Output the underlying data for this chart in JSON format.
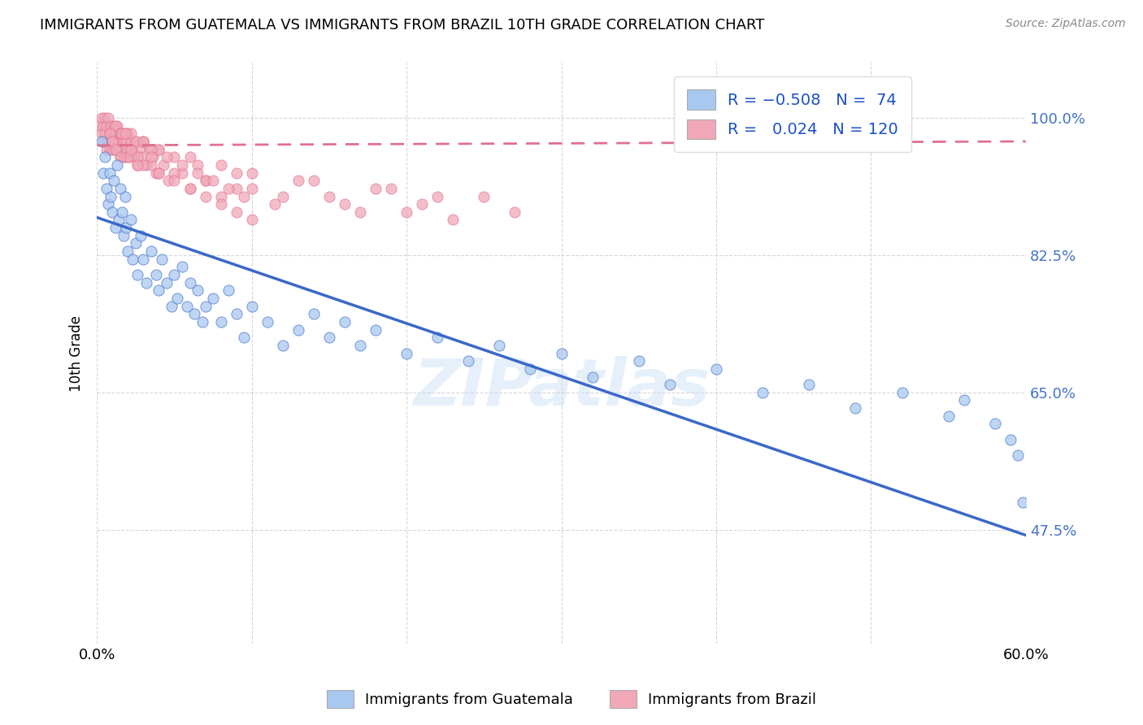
{
  "title": "IMMIGRANTS FROM GUATEMALA VS IMMIGRANTS FROM BRAZIL 10TH GRADE CORRELATION CHART",
  "source": "Source: ZipAtlas.com",
  "ylabel": "10th Grade",
  "ytick_labels": [
    "47.5%",
    "65.0%",
    "82.5%",
    "100.0%"
  ],
  "ytick_values": [
    0.475,
    0.65,
    0.825,
    1.0
  ],
  "xlim": [
    0.0,
    0.6
  ],
  "ylim": [
    0.33,
    1.07
  ],
  "color_guatemala": "#a8c8f0",
  "color_brazil": "#f0a8b8",
  "color_line_guatemala": "#3a68c8",
  "color_line_brazil": "#e07090",
  "watermark": "ZIPatlas",
  "guatemala_line_x0": 0.0,
  "guatemala_line_y0": 0.873,
  "guatemala_line_x1": 0.6,
  "guatemala_line_y1": 0.468,
  "brazil_line_x0": 0.0,
  "brazil_line_y0": 0.965,
  "brazil_line_x1": 0.6,
  "brazil_line_y1": 0.97,
  "guatemala_x": [
    0.003,
    0.004,
    0.005,
    0.006,
    0.007,
    0.008,
    0.009,
    0.01,
    0.011,
    0.012,
    0.013,
    0.014,
    0.015,
    0.016,
    0.017,
    0.018,
    0.019,
    0.02,
    0.022,
    0.023,
    0.025,
    0.026,
    0.028,
    0.03,
    0.032,
    0.035,
    0.038,
    0.04,
    0.042,
    0.045,
    0.048,
    0.05,
    0.052,
    0.055,
    0.058,
    0.06,
    0.063,
    0.065,
    0.068,
    0.07,
    0.075,
    0.08,
    0.085,
    0.09,
    0.095,
    0.1,
    0.11,
    0.12,
    0.13,
    0.14,
    0.15,
    0.16,
    0.17,
    0.18,
    0.2,
    0.22,
    0.24,
    0.26,
    0.28,
    0.3,
    0.32,
    0.35,
    0.37,
    0.4,
    0.43,
    0.46,
    0.49,
    0.52,
    0.55,
    0.56,
    0.58,
    0.59,
    0.595,
    0.598
  ],
  "guatemala_y": [
    0.97,
    0.93,
    0.95,
    0.91,
    0.89,
    0.93,
    0.9,
    0.88,
    0.92,
    0.86,
    0.94,
    0.87,
    0.91,
    0.88,
    0.85,
    0.9,
    0.86,
    0.83,
    0.87,
    0.82,
    0.84,
    0.8,
    0.85,
    0.82,
    0.79,
    0.83,
    0.8,
    0.78,
    0.82,
    0.79,
    0.76,
    0.8,
    0.77,
    0.81,
    0.76,
    0.79,
    0.75,
    0.78,
    0.74,
    0.76,
    0.77,
    0.74,
    0.78,
    0.75,
    0.72,
    0.76,
    0.74,
    0.71,
    0.73,
    0.75,
    0.72,
    0.74,
    0.71,
    0.73,
    0.7,
    0.72,
    0.69,
    0.71,
    0.68,
    0.7,
    0.67,
    0.69,
    0.66,
    0.68,
    0.65,
    0.66,
    0.63,
    0.65,
    0.62,
    0.64,
    0.61,
    0.59,
    0.57,
    0.51
  ],
  "brazil_x": [
    0.002,
    0.003,
    0.003,
    0.004,
    0.004,
    0.005,
    0.005,
    0.006,
    0.006,
    0.007,
    0.007,
    0.008,
    0.008,
    0.009,
    0.009,
    0.01,
    0.01,
    0.011,
    0.011,
    0.012,
    0.012,
    0.013,
    0.013,
    0.014,
    0.014,
    0.015,
    0.015,
    0.016,
    0.016,
    0.017,
    0.017,
    0.018,
    0.018,
    0.019,
    0.019,
    0.02,
    0.02,
    0.021,
    0.022,
    0.023,
    0.024,
    0.025,
    0.026,
    0.027,
    0.028,
    0.03,
    0.032,
    0.034,
    0.036,
    0.038,
    0.04,
    0.043,
    0.046,
    0.05,
    0.055,
    0.06,
    0.065,
    0.07,
    0.08,
    0.09,
    0.1,
    0.115,
    0.13,
    0.15,
    0.17,
    0.19,
    0.21,
    0.23,
    0.25,
    0.27,
    0.012,
    0.015,
    0.018,
    0.022,
    0.026,
    0.03,
    0.035,
    0.04,
    0.05,
    0.06,
    0.07,
    0.08,
    0.09,
    0.1,
    0.12,
    0.14,
    0.16,
    0.18,
    0.2,
    0.22,
    0.01,
    0.013,
    0.016,
    0.02,
    0.025,
    0.03,
    0.035,
    0.04,
    0.045,
    0.05,
    0.055,
    0.06,
    0.065,
    0.07,
    0.075,
    0.08,
    0.085,
    0.09,
    0.095,
    0.1,
    0.008,
    0.01,
    0.012,
    0.015,
    0.018,
    0.022,
    0.026,
    0.03,
    0.035,
    0.04
  ],
  "brazil_y": [
    0.99,
    0.98,
    1.0,
    0.97,
    0.99,
    0.98,
    1.0,
    0.96,
    0.99,
    0.97,
    1.0,
    0.96,
    0.98,
    0.97,
    0.99,
    0.96,
    0.98,
    0.97,
    0.99,
    0.96,
    0.98,
    0.97,
    0.99,
    0.96,
    0.98,
    0.95,
    0.97,
    0.96,
    0.98,
    0.95,
    0.97,
    0.96,
    0.98,
    0.95,
    0.97,
    0.96,
    0.98,
    0.95,
    0.97,
    0.96,
    0.95,
    0.97,
    0.94,
    0.96,
    0.95,
    0.97,
    0.94,
    0.96,
    0.95,
    0.93,
    0.96,
    0.94,
    0.92,
    0.95,
    0.93,
    0.91,
    0.94,
    0.92,
    0.9,
    0.93,
    0.91,
    0.89,
    0.92,
    0.9,
    0.88,
    0.91,
    0.89,
    0.87,
    0.9,
    0.88,
    0.99,
    0.98,
    0.96,
    0.98,
    0.95,
    0.97,
    0.94,
    0.96,
    0.93,
    0.95,
    0.92,
    0.94,
    0.91,
    0.93,
    0.9,
    0.92,
    0.89,
    0.91,
    0.88,
    0.9,
    0.97,
    0.96,
    0.98,
    0.95,
    0.97,
    0.94,
    0.96,
    0.93,
    0.95,
    0.92,
    0.94,
    0.91,
    0.93,
    0.9,
    0.92,
    0.89,
    0.91,
    0.88,
    0.9,
    0.87,
    0.98,
    0.97,
    0.96,
    0.95,
    0.98,
    0.96,
    0.94,
    0.97,
    0.95,
    0.93
  ]
}
